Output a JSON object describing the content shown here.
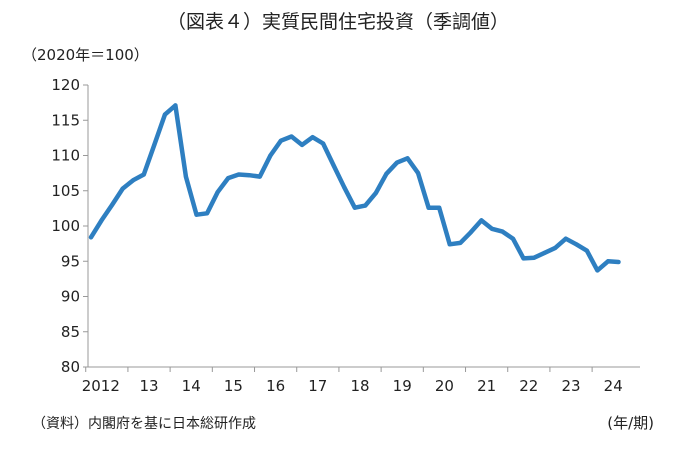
{
  "chart_data": {
    "type": "line",
    "title": "（図表４）実質民間住宅投資（季調値）",
    "unit_label": "（2020年＝100）",
    "x_axis_label": "(年/期)",
    "source_note": "（資料）内閣府を基に日本総研作成",
    "ylim": [
      80,
      120
    ],
    "yticks": [
      "120",
      "115",
      "110",
      "105",
      "100",
      "95",
      "90",
      "85",
      "80"
    ],
    "xtick_labels": [
      "2012",
      "13",
      "14",
      "15",
      "16",
      "17",
      "18",
      "19",
      "20",
      "21",
      "22",
      "23",
      "24"
    ],
    "xtick_years": [
      2012,
      2013,
      2014,
      2015,
      2016,
      2017,
      2018,
      2019,
      2020,
      2021,
      2022,
      2023,
      2024
    ],
    "grid": false,
    "line_color": "#2E7FC1",
    "series": [
      {
        "x": [
          "2012Q1",
          "2012Q2",
          "2012Q3",
          "2012Q4",
          "2013Q1",
          "2013Q2",
          "2013Q3",
          "2013Q4",
          "2014Q1",
          "2014Q2",
          "2014Q3",
          "2014Q4",
          "2015Q1",
          "2015Q2",
          "2015Q3",
          "2015Q4",
          "2016Q1",
          "2016Q2",
          "2016Q3",
          "2016Q4",
          "2017Q1",
          "2017Q2",
          "2017Q3",
          "2017Q4",
          "2018Q1",
          "2018Q2",
          "2018Q3",
          "2018Q4",
          "2019Q1",
          "2019Q2",
          "2019Q3",
          "2019Q4",
          "2020Q1",
          "2020Q2",
          "2020Q3",
          "2020Q4",
          "2021Q1",
          "2021Q2",
          "2021Q3",
          "2021Q4",
          "2022Q1",
          "2022Q2",
          "2022Q3",
          "2022Q4",
          "2023Q1",
          "2023Q2",
          "2023Q3",
          "2023Q4",
          "2024Q1",
          "2024Q2",
          "2024Q3"
        ],
        "values": [
          98.4,
          100.8,
          103.0,
          105.3,
          106.5,
          107.3,
          111.5,
          115.8,
          117.1,
          107.0,
          101.6,
          101.8,
          104.8,
          106.8,
          107.3,
          107.2,
          107.0,
          110.0,
          112.1,
          112.7,
          111.5,
          112.6,
          111.7,
          108.6,
          105.5,
          102.6,
          102.9,
          104.7,
          107.4,
          109.0,
          109.6,
          107.5,
          102.6,
          102.6,
          97.4,
          97.6,
          99.1,
          100.8,
          99.6,
          99.2,
          98.2,
          95.4,
          95.5,
          96.2,
          96.9,
          98.2,
          97.4,
          96.5,
          93.7,
          95.0,
          94.9
        ]
      }
    ]
  }
}
